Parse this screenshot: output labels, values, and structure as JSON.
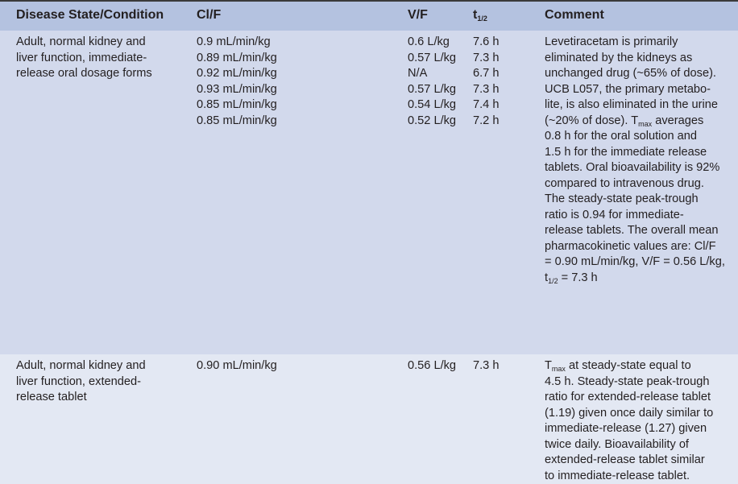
{
  "header": {
    "condition": "Disease State/Condition",
    "clf": "Cl/F",
    "vf": "V/F",
    "thalf": "t",
    "thalf_sub": "1/2",
    "comment": "Comment"
  },
  "rows": [
    {
      "condition": [
        "Adult, normal kidney and",
        "liver function, immediate-",
        "release oral dosage forms"
      ],
      "clf": [
        "0.9 mL/min/kg",
        "0.89 mL/min/kg",
        "0.92 mL/min/kg",
        "0.93 mL/min/kg",
        "0.85 mL/min/kg",
        "0.85 mL/min/kg"
      ],
      "vf": [
        "0.6 L/kg",
        "0.57 L/kg",
        "N/A",
        "0.57 L/kg",
        "0.54 L/kg",
        "0.52 L/kg"
      ],
      "thalf": [
        "7.6 h",
        "7.3 h",
        "6.7 h",
        "7.3 h",
        "7.4 h",
        "7.2 h"
      ],
      "comment": [
        [
          {
            "t": "Levetiracetam is primarily"
          }
        ],
        [
          {
            "t": "eliminated by the kidneys as"
          }
        ],
        [
          {
            "t": "unchanged drug (~65% of dose)."
          }
        ],
        [
          {
            "t": "UCB L057, the primary metabo-"
          }
        ],
        [
          {
            "t": "lite, is also eliminated in the urine"
          }
        ],
        [
          {
            "t": "(~20% of dose). T"
          },
          {
            "sub": "max"
          },
          {
            "t": " averages"
          }
        ],
        [
          {
            "t": "0.8 h for the oral solution and"
          }
        ],
        [
          {
            "t": "1.5 h for the immediate release"
          }
        ],
        [
          {
            "t": "tablets. Oral bioavailability is 92%"
          }
        ],
        [
          {
            "t": "compared to intravenous drug."
          }
        ],
        [
          {
            "t": "The steady-state peak-trough"
          }
        ],
        [
          {
            "t": "ratio is 0.94 for immediate-"
          }
        ],
        [
          {
            "t": "release tablets. The overall mean"
          }
        ],
        [
          {
            "t": "pharmacokinetic values are: Cl/F"
          }
        ],
        [
          {
            "t": "= 0.90 mL/min/kg, V/F = 0.56 L/kg,"
          }
        ],
        [
          {
            "t": "t"
          },
          {
            "sub": "1/2"
          },
          {
            "t": " = 7.3 h"
          }
        ]
      ]
    },
    {
      "condition": [
        "Adult, normal kidney and",
        "liver function, extended-",
        "release tablet"
      ],
      "clf": [
        "0.90 mL/min/kg"
      ],
      "vf": [
        "0.56 L/kg"
      ],
      "thalf": [
        "7.3 h"
      ],
      "comment": [
        [
          {
            "t": "T"
          },
          {
            "sub": "max"
          },
          {
            "t": " at steady-state equal to"
          }
        ],
        [
          {
            "t": "4.5 h. Steady-state peak-trough"
          }
        ],
        [
          {
            "t": "ratio for extended-release tablet"
          }
        ],
        [
          {
            "t": "(1.19) given once daily similar to"
          }
        ],
        [
          {
            "t": "immediate-release (1.27) given"
          }
        ],
        [
          {
            "t": "twice daily. Bioavailability of"
          }
        ],
        [
          {
            "t": "extended-release tablet similar"
          }
        ],
        [
          {
            "t": "to immediate-release tablet."
          }
        ]
      ]
    }
  ]
}
